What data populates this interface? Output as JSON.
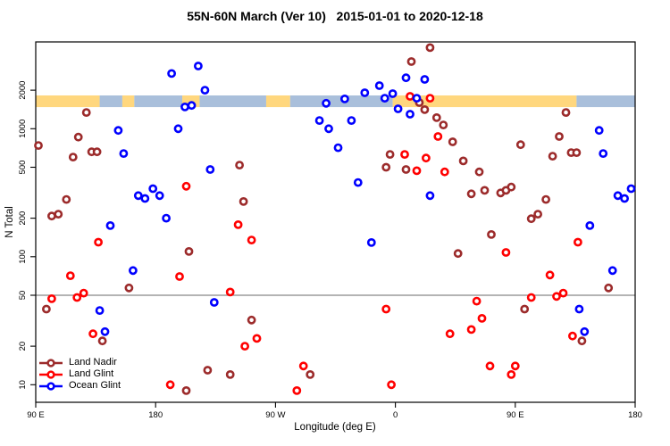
{
  "title": "55N-60N March (Ver 10)   2015-01-01 to 2020-12-18",
  "legend": {
    "items": [
      {
        "label": "Land Nadir",
        "color": "#9C2B2B"
      },
      {
        "label": "Land Glint",
        "color": "#FF0000"
      },
      {
        "label": "Ocean Glint",
        "color": "#0000FF"
      }
    ]
  },
  "chart_data": {
    "type": "scatter",
    "title": "55N-60N March (Ver 10)   2015-01-01 to 2020-12-18",
    "xlabel": "Longitude (deg E)",
    "ylabel": "N Total",
    "x_axis": {
      "range": [
        90,
        540
      ],
      "ticks": [
        90,
        180,
        270,
        360,
        450,
        540
      ],
      "tick_labels": [
        "90 E",
        "180",
        "90 W",
        "0",
        "90 E",
        "180"
      ],
      "note": "longitude wraps eastward: 90E to 180 to 90W to 0 to 90E to 180"
    },
    "y_axis": {
      "scale": "log",
      "range": [
        8.5,
        4600
      ],
      "ticks": [
        10,
        20,
        50,
        100,
        200,
        500,
        1000,
        2000
      ],
      "tick_labels": [
        "10",
        "20",
        "50",
        "100",
        "200",
        "500",
        "1000",
        "2000"
      ],
      "tick_rotation": -90
    },
    "grid": "off",
    "legend_position": "bottom-left",
    "reference_line": {
      "value": 50,
      "color": "#888888"
    },
    "map_band": {
      "description": "land/ocean strip for 55N-60N latitude drawn across plot",
      "value_top": 1820,
      "value_bottom": 1475,
      "land_color": "#FFD77E",
      "ocean_color": "#A9BFDB",
      "segments": [
        {
          "from_lon": 90,
          "to_lon": 138,
          "surface": "land"
        },
        {
          "from_lon": 138,
          "to_lon": 155,
          "surface": "ocean"
        },
        {
          "from_lon": 155,
          "to_lon": 164,
          "surface": "land"
        },
        {
          "from_lon": 164,
          "to_lon": 200,
          "surface": "ocean"
        },
        {
          "from_lon": 200,
          "to_lon": 213,
          "surface": "land"
        },
        {
          "from_lon": 213,
          "to_lon": 263,
          "surface": "ocean"
        },
        {
          "from_lon": 263,
          "to_lon": 281,
          "surface": "land"
        },
        {
          "from_lon": 281,
          "to_lon": 358,
          "surface": "ocean"
        },
        {
          "from_lon": 358,
          "to_lon": 496,
          "surface": "land"
        },
        {
          "from_lon": 496,
          "to_lon": 540,
          "surface": "ocean"
        }
      ]
    },
    "series": [
      {
        "name": "Land Nadir",
        "color": "#9C2B2B",
        "points": [
          [
            92,
            740
          ],
          [
            122,
            860
          ],
          [
            128,
            1340
          ],
          [
            118,
            600
          ],
          [
            132,
            660
          ],
          [
            136,
            660
          ],
          [
            386,
            4300
          ],
          [
            372,
            3350
          ],
          [
            378,
            1600
          ],
          [
            382,
            1410
          ],
          [
            391,
            1220
          ],
          [
            396,
            1070
          ],
          [
            356,
            630
          ],
          [
            243,
            520
          ],
          [
            488,
            1340
          ],
          [
            403,
            790
          ],
          [
            483,
            870
          ],
          [
            454,
            750
          ],
          [
            478,
            610
          ],
          [
            492,
            650
          ],
          [
            496,
            650
          ],
          [
            411,
            560
          ],
          [
            113,
            280
          ],
          [
            102,
            208
          ],
          [
            107,
            215
          ],
          [
            205,
            110
          ],
          [
            160,
            57
          ],
          [
            353,
            500
          ],
          [
            368,
            480
          ],
          [
            246,
            270
          ],
          [
            423,
            460
          ],
          [
            417,
            310
          ],
          [
            427,
            330
          ],
          [
            439,
            315
          ],
          [
            443,
            330
          ],
          [
            447,
            350
          ],
          [
            473,
            280
          ],
          [
            462,
            198
          ],
          [
            467,
            215
          ],
          [
            432,
            149
          ],
          [
            407,
            106
          ],
          [
            520,
            57
          ],
          [
            98,
            39
          ],
          [
            140,
            22
          ],
          [
            219,
            13
          ],
          [
            236,
            12
          ],
          [
            203,
            9
          ],
          [
            252,
            32
          ],
          [
            296,
            12
          ],
          [
            457,
            39
          ],
          [
            500,
            22
          ]
        ]
      },
      {
        "name": "Land Glint",
        "color": "#FF0000",
        "points": [
          [
            371,
            1790
          ],
          [
            386,
            1730
          ],
          [
            392,
            870
          ],
          [
            367,
            630
          ],
          [
            383,
            590
          ],
          [
            376,
            470
          ],
          [
            397,
            460
          ],
          [
            203,
            355
          ],
          [
            242,
            178
          ],
          [
            252,
            135
          ],
          [
            137,
            130
          ],
          [
            116,
            71
          ],
          [
            198,
            70
          ],
          [
            443,
            108
          ],
          [
            497,
            130
          ],
          [
            476,
            72
          ],
          [
            102,
            47
          ],
          [
            121,
            48
          ],
          [
            126,
            52
          ],
          [
            236,
            53
          ],
          [
            133,
            25
          ],
          [
            191,
            10
          ],
          [
            353,
            39
          ],
          [
            256,
            23
          ],
          [
            247,
            20
          ],
          [
            291,
            14
          ],
          [
            286,
            9
          ],
          [
            357,
            10
          ],
          [
            462,
            48
          ],
          [
            481,
            49
          ],
          [
            486,
            52
          ],
          [
            421,
            45
          ],
          [
            425,
            33
          ],
          [
            417,
            27
          ],
          [
            401,
            25
          ],
          [
            493,
            24
          ],
          [
            431,
            14
          ],
          [
            450,
            14
          ],
          [
            447,
            12
          ]
        ]
      },
      {
        "name": "Ocean Glint",
        "color": "#0000FF",
        "points": [
          [
            192,
            2700
          ],
          [
            212,
            3090
          ],
          [
            217,
            2000
          ],
          [
            202,
            1480
          ],
          [
            207,
            1520
          ],
          [
            152,
            970
          ],
          [
            197,
            1000
          ],
          [
            156,
            640
          ],
          [
            368,
            2500
          ],
          [
            382,
            2430
          ],
          [
            348,
            2170
          ],
          [
            358,
            1880
          ],
          [
            352,
            1730
          ],
          [
            337,
            1910
          ],
          [
            376,
            1730
          ],
          [
            322,
            1710
          ],
          [
            308,
            1580
          ],
          [
            362,
            1430
          ],
          [
            371,
            1300
          ],
          [
            303,
            1160
          ],
          [
            310,
            1000
          ],
          [
            327,
            1160
          ],
          [
            317,
            710
          ],
          [
            513,
            970
          ],
          [
            516,
            640
          ],
          [
            221,
            480
          ],
          [
            167,
            300
          ],
          [
            172,
            285
          ],
          [
            178,
            340
          ],
          [
            183,
            300
          ],
          [
            188,
            200
          ],
          [
            146,
            175
          ],
          [
            163,
            78
          ],
          [
            332,
            380
          ],
          [
            386,
            300
          ],
          [
            342,
            129
          ],
          [
            527,
            300
          ],
          [
            532,
            285
          ],
          [
            537,
            340
          ],
          [
            506,
            175
          ],
          [
            523,
            78
          ],
          [
            138,
            38
          ],
          [
            224,
            44
          ],
          [
            142,
            26
          ],
          [
            498,
            39
          ],
          [
            502,
            26
          ]
        ]
      }
    ]
  }
}
